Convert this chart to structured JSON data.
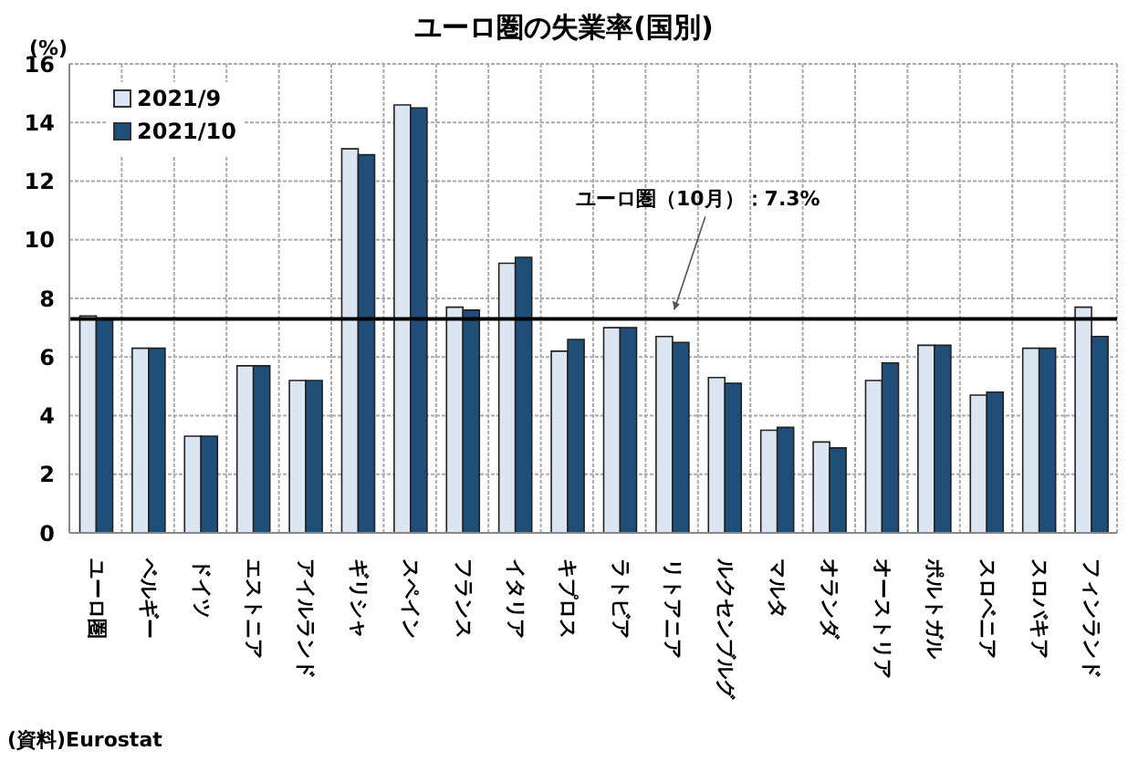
{
  "chart_data": {
    "type": "bar",
    "title": "ユーロ圏の失業率(国別)",
    "ylabel": "(%)",
    "categories": [
      "ユーロ圏",
      "ベルギー",
      "ドイツ",
      "エストニア",
      "アイルランド",
      "ギリシャ",
      "スペイン",
      "フランス",
      "イタリア",
      "キプロス",
      "ラトビア",
      "リトアニア",
      "ルクセンブルグ",
      "マルタ",
      "オランダ",
      "オーストリア",
      "ポルトガル",
      "スロベニア",
      "スロバキア",
      "フィンランド"
    ],
    "series": [
      {
        "name": "2021/9",
        "color": "#dce6f2",
        "values": [
          7.4,
          6.3,
          3.3,
          5.7,
          5.2,
          13.1,
          14.6,
          7.7,
          9.2,
          6.2,
          7.0,
          6.7,
          5.3,
          3.5,
          3.1,
          5.2,
          6.4,
          4.7,
          6.3,
          7.7
        ]
      },
      {
        "name": "2021/10",
        "color": "#1f4e79",
        "values": [
          7.3,
          6.3,
          3.3,
          5.7,
          5.2,
          12.9,
          14.5,
          7.6,
          9.4,
          6.6,
          7.0,
          6.5,
          5.1,
          3.6,
          2.9,
          5.8,
          6.4,
          4.8,
          6.3,
          6.7
        ]
      }
    ],
    "ylim": [
      0,
      16
    ],
    "yticks": [
      0,
      2,
      4,
      6,
      8,
      10,
      12,
      14,
      16
    ],
    "grid": true,
    "legend": "top left",
    "ref_lines": [
      {
        "axis": "y",
        "value": 7.3,
        "label": "ユーロ圏（10月）：7.3%",
        "color": "#000000"
      }
    ],
    "annotations": [
      "(資料)Eurostat"
    ]
  }
}
